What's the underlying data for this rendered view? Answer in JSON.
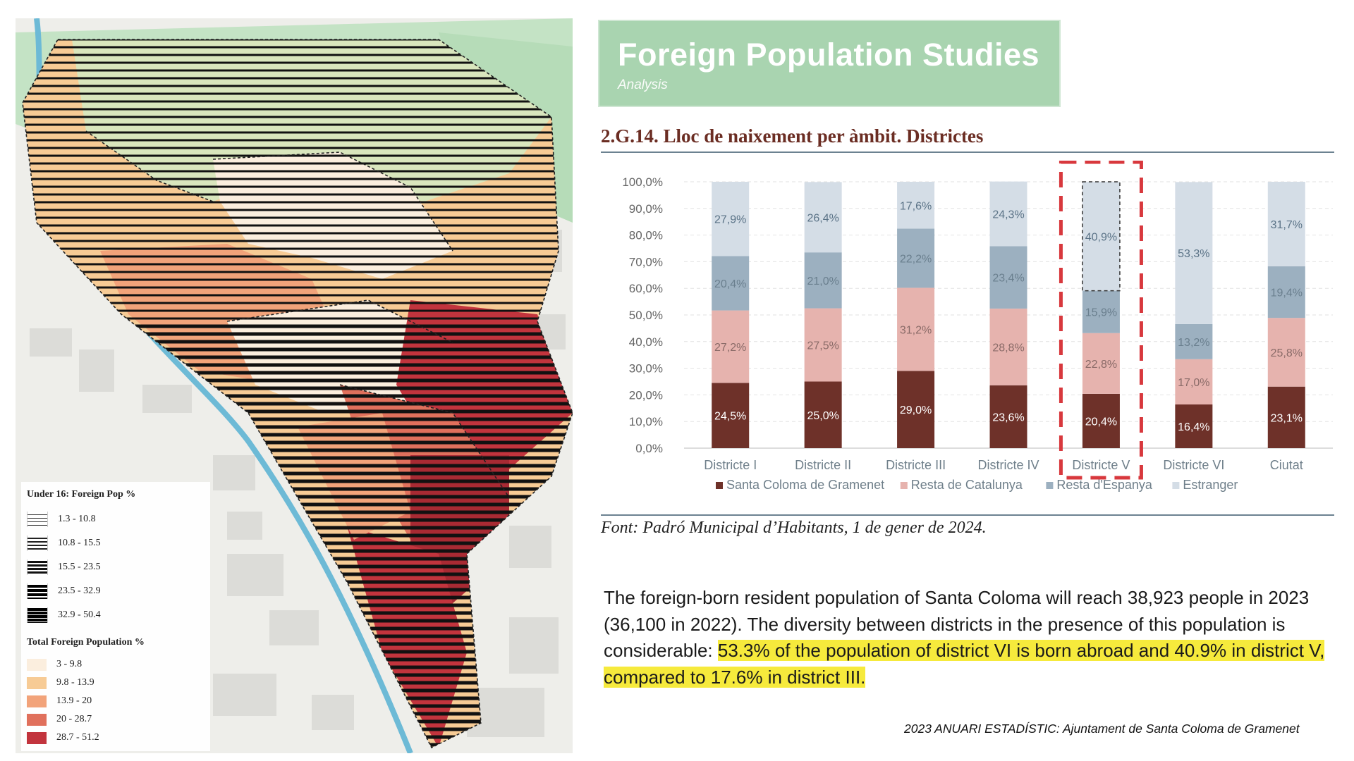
{
  "header": {
    "title": "Foreign Population Studies",
    "subtitle": "Analysis"
  },
  "map": {
    "legend_hatch": {
      "title": "Under 16: Foreign Pop %",
      "items": [
        "1.3 - 10.8",
        "10.8 - 15.5",
        "15.5 - 23.5",
        "23.5 - 32.9",
        "32.9 - 50.4"
      ]
    },
    "legend_total": {
      "title": "Total Foreign Population %",
      "items": [
        "3 - 9.8",
        "9.8 - 13.9",
        "13.9 - 20",
        "20 - 28.7",
        "28.7 - 51.2"
      ],
      "colors": [
        "#fbeede",
        "#f7cb95",
        "#f2a37a",
        "#e0705c",
        "#c2343d"
      ]
    }
  },
  "chart_data": {
    "type": "bar",
    "stacked": true,
    "title": "2.G.14. Lloc de naixement per àmbit. Districtes",
    "categories": [
      "Districte I",
      "Districte II",
      "Districte III",
      "Districte IV",
      "Districte V",
      "Districte VI",
      "Ciutat"
    ],
    "series": [
      {
        "name": "Santa Coloma de Gramenet",
        "color": "#6e3129",
        "values": [
          24.5,
          25.0,
          29.0,
          23.6,
          20.4,
          16.4,
          23.1
        ],
        "labels": [
          "24,5%",
          "25,0%",
          "29,0%",
          "23,6%",
          "20,4%",
          "16,4%",
          "23,1%"
        ]
      },
      {
        "name": "Resta de Catalunya",
        "color": "#e6b3ae",
        "values": [
          27.2,
          27.5,
          31.2,
          28.8,
          22.8,
          17.0,
          25.8
        ],
        "labels": [
          "27,2%",
          "27,5%",
          "31,2%",
          "28,8%",
          "22,8%",
          "17,0%",
          "25,8%"
        ]
      },
      {
        "name": "Resta d'Espanya",
        "color": "#9cb0c0",
        "values": [
          20.4,
          21.0,
          22.2,
          23.4,
          15.9,
          13.2,
          19.4
        ],
        "labels": [
          "20,4%",
          "21,0%",
          "22,2%",
          "23,4%",
          "15,9%",
          "13,2%",
          "19,4%"
        ]
      },
      {
        "name": "Estranger",
        "color": "#d4dde6",
        "values": [
          27.9,
          26.4,
          17.6,
          24.3,
          40.9,
          53.3,
          31.7
        ],
        "labels": [
          "27,9%",
          "26,4%",
          "17,6%",
          "24,3%",
          "40,9%",
          "53,3%",
          "31,7%"
        ]
      }
    ],
    "y_ticks": [
      "0,0%",
      "10,0%",
      "20,0%",
      "30,0%",
      "40,0%",
      "50,0%",
      "60,0%",
      "70,0%",
      "80,0%",
      "90,0%",
      "100,0%"
    ],
    "ylim": [
      0,
      100
    ],
    "grid": true,
    "legend_position": "bottom",
    "highlighted_category": "Districte V",
    "highlight_color": "#d8383d"
  },
  "source": "Font: Padró Municipal d’Habitants, 1 de gener de 2024.",
  "body": {
    "text_plain": "The foreign-born resident population of Santa Coloma will reach 38,923 people in 2023 (36,100 in 2022). The diversity between districts in the presence of this population is considerable:",
    "text_highlight": "53.3% of the population of district VI is born abroad and 40.9% in district V, compared to 17.6% in district III."
  },
  "credit": "2023 ANUARI ESTADÍSTIC: Ajuntament de Santa Coloma de Gramenet"
}
